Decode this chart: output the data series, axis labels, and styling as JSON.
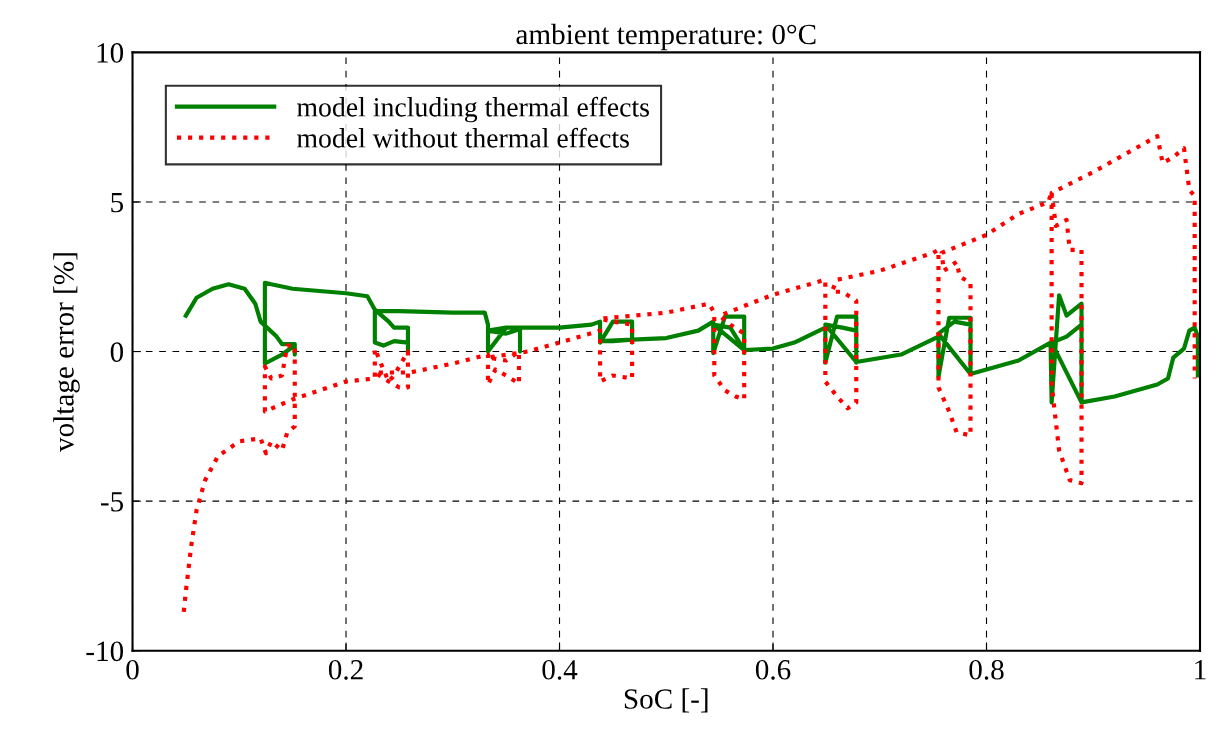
{
  "chart_data": {
    "type": "line",
    "title": "ambient temperature: 0°C",
    "xlabel": "SoC [-]",
    "ylabel": "voltage error [%]",
    "xlim": [
      0,
      1
    ],
    "ylim": [
      -10,
      10
    ],
    "xticks": [
      0,
      0.2,
      0.4,
      0.6,
      0.8,
      1
    ],
    "yticks": [
      -10,
      -5,
      0,
      5,
      10
    ],
    "grid": true,
    "legend": "top left",
    "series": [
      {
        "name": "model including thermal effects",
        "color": "#008000",
        "line_style": "solid",
        "x": [
          0.05,
          0.06,
          0.075,
          0.09,
          0.105,
          0.115,
          0.12,
          0.135,
          0.14,
          0.152,
          0.152,
          0.152,
          0.14,
          0.124,
          0.124,
          0.13,
          0.15,
          0.2,
          0.22,
          0.227,
          0.24,
          0.245,
          0.258,
          0.258,
          0.258,
          0.245,
          0.235,
          0.227,
          0.227,
          0.25,
          0.3,
          0.33,
          0.333,
          0.333,
          0.35,
          0.363,
          0.363,
          0.363,
          0.35,
          0.333,
          0.35,
          0.363,
          0.4,
          0.43,
          0.438,
          0.438,
          0.45,
          0.468,
          0.468,
          0.468,
          0.45,
          0.438,
          0.468,
          0.5,
          0.53,
          0.544,
          0.544,
          0.555,
          0.573,
          0.573,
          0.573,
          0.56,
          0.544,
          0.573,
          0.6,
          0.62,
          0.649,
          0.649,
          0.66,
          0.678,
          0.678,
          0.678,
          0.665,
          0.649,
          0.678,
          0.72,
          0.755,
          0.755,
          0.765,
          0.785,
          0.785,
          0.785,
          0.77,
          0.755,
          0.785,
          0.83,
          0.86,
          0.861,
          0.868,
          0.875,
          0.889,
          0.889,
          0.889,
          0.875,
          0.861,
          0.889,
          0.92,
          0.96,
          0.97,
          0.975,
          0.985,
          0.99,
          0.995,
          0.998,
          0.998
        ],
        "values": [
          1.2,
          1.8,
          2.1,
          2.25,
          2.1,
          1.6,
          1.0,
          0.5,
          0.25,
          0.25,
          -0.1,
          0.2,
          -0.1,
          -0.4,
          2.3,
          2.25,
          2.1,
          1.95,
          1.85,
          1.4,
          1.0,
          0.8,
          0.8,
          0.0,
          0.3,
          0.35,
          0.2,
          0.3,
          1.35,
          1.35,
          1.3,
          1.3,
          0.9,
          0.0,
          0.8,
          0.8,
          0.0,
          0.75,
          0.6,
          0.7,
          0.8,
          0.8,
          0.8,
          0.9,
          1.0,
          0.3,
          1.0,
          1.0,
          0.3,
          0.4,
          0.35,
          0.35,
          0.4,
          0.45,
          0.7,
          1.0,
          -0.05,
          1.17,
          1.17,
          -0.05,
          0.05,
          0.8,
          0.9,
          0.05,
          0.1,
          0.3,
          0.8,
          -0.37,
          1.17,
          1.17,
          -0.37,
          0.7,
          0.8,
          0.9,
          -0.35,
          -0.1,
          0.5,
          -0.85,
          1.13,
          1.13,
          -0.75,
          0.9,
          1.0,
          0.6,
          -0.75,
          -0.3,
          0.3,
          -1.7,
          1.88,
          1.2,
          1.6,
          -1.7,
          0.9,
          0.5,
          0.3,
          -1.7,
          -1.5,
          -1.1,
          -0.9,
          -0.2,
          0.1,
          0.7,
          0.8,
          0.5,
          -0.8
        ]
      },
      {
        "name": "model without thermal effects",
        "color": "#ff0000",
        "line_style": "dotted",
        "x": [
          0.048,
          0.05,
          0.055,
          0.06,
          0.068,
          0.08,
          0.1,
          0.12,
          0.125,
          0.13,
          0.14,
          0.145,
          0.152,
          0.152,
          0.145,
          0.14,
          0.13,
          0.124,
          0.124,
          0.15,
          0.2,
          0.227,
          0.227,
          0.235,
          0.24,
          0.245,
          0.258,
          0.258,
          0.25,
          0.24,
          0.227,
          0.26,
          0.3,
          0.333,
          0.333,
          0.34,
          0.35,
          0.362,
          0.362,
          0.35,
          0.333,
          0.37,
          0.4,
          0.438,
          0.438,
          0.45,
          0.468,
          0.468,
          0.45,
          0.438,
          0.5,
          0.54,
          0.545,
          0.545,
          0.555,
          0.565,
          0.573,
          0.573,
          0.56,
          0.55,
          0.6,
          0.649,
          0.649,
          0.66,
          0.67,
          0.678,
          0.678,
          0.665,
          0.655,
          0.66,
          0.7,
          0.75,
          0.755,
          0.755,
          0.765,
          0.772,
          0.785,
          0.785,
          0.775,
          0.772,
          0.76,
          0.758,
          0.8,
          0.83,
          0.858,
          0.861,
          0.861,
          0.868,
          0.878,
          0.889,
          0.889,
          0.878,
          0.875,
          0.865,
          0.861,
          0.9,
          0.93,
          0.96,
          0.965,
          0.975,
          0.985,
          0.99,
          0.995,
          0.995
        ],
        "values": [
          -8.7,
          -8.0,
          -6.5,
          -5.3,
          -4.3,
          -3.5,
          -3.0,
          -2.9,
          -3.4,
          -3.0,
          -3.3,
          -2.7,
          -2.5,
          0.2,
          0.2,
          -0.8,
          -0.9,
          -0.5,
          -2.0,
          -1.6,
          -1.0,
          -0.9,
          0.1,
          -0.6,
          -1.0,
          -0.8,
          0.0,
          -1.2,
          -1.2,
          -1.0,
          -0.7,
          -0.7,
          -0.4,
          -0.1,
          -1.1,
          -0.6,
          -0.8,
          -1.07,
          0.0,
          -0.3,
          -0.2,
          0.0,
          0.3,
          0.7,
          -1.0,
          -0.8,
          -0.9,
          0.9,
          1.0,
          1.1,
          1.3,
          1.6,
          1.3,
          -0.8,
          -1.3,
          -1.5,
          -1.6,
          0.6,
          0.9,
          1.2,
          1.9,
          2.4,
          -1.0,
          -1.5,
          -1.9,
          -1.7,
          1.7,
          2.0,
          2.0,
          2.4,
          2.7,
          3.3,
          3.4,
          -1.2,
          -2.0,
          -2.7,
          -2.8,
          2.3,
          2.5,
          3.0,
          2.7,
          3.3,
          3.9,
          4.6,
          5.0,
          5.35,
          -1.1,
          -3.3,
          -4.3,
          -4.4,
          3.4,
          3.4,
          4.4,
          4.2,
          5.3,
          6.0,
          6.6,
          7.2,
          6.3,
          6.5,
          6.8,
          5.4,
          5.2,
          -0.9
        ]
      }
    ]
  }
}
